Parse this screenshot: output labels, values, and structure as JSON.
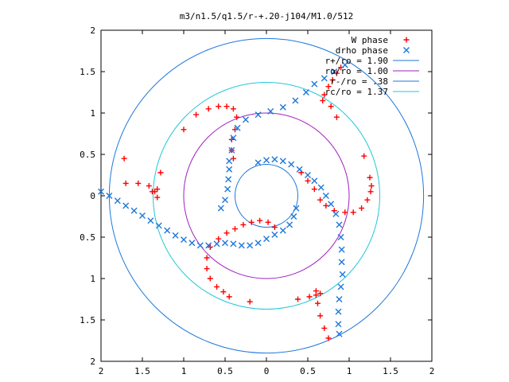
{
  "chart_data": {
    "type": "scatter",
    "title": "m3/n1.5/q1.5/r-+.20-j104/M1.0/512",
    "xlabel": "",
    "ylabel": "",
    "xlim": [
      -2,
      2
    ],
    "ylim": [
      -2,
      2
    ],
    "x_tick_values": [
      -2,
      -1.5,
      -1,
      -0.5,
      0,
      0.5,
      1,
      1.5,
      2
    ],
    "y_tick_values": [
      -2,
      -1.5,
      -1,
      -0.5,
      0,
      0.5,
      1,
      1.5,
      2
    ],
    "x_tick_labels": [
      "2",
      "1.5",
      "1",
      "0.5",
      "0",
      "0.5",
      "1",
      "1.5",
      "2"
    ],
    "y_tick_labels": [
      "2",
      "1.5",
      "1",
      "0.5",
      "0",
      "0.5",
      "1",
      "1.5",
      "2"
    ],
    "grid": false,
    "legend_position": "top-right",
    "series": [
      {
        "name": "W phase",
        "marker": "plus",
        "color": "#ff0000",
        "points": [
          [
            0.9,
            1.55
          ],
          [
            0.85,
            1.48
          ],
          [
            0.8,
            1.4
          ],
          [
            0.75,
            1.32
          ],
          [
            0.7,
            1.22
          ],
          [
            0.68,
            1.15
          ],
          [
            0.42,
            0.28
          ],
          [
            0.5,
            0.18
          ],
          [
            0.58,
            0.08
          ],
          [
            0.65,
            -0.05
          ],
          [
            0.72,
            -0.12
          ],
          [
            0.82,
            -0.18
          ],
          [
            0.95,
            -0.2
          ],
          [
            1.05,
            -0.2
          ],
          [
            1.15,
            -0.15
          ],
          [
            1.22,
            -0.05
          ],
          [
            1.26,
            0.05
          ],
          [
            1.27,
            0.12
          ],
          [
            0.1,
            -0.38
          ],
          [
            0.02,
            -0.32
          ],
          [
            -0.08,
            -0.3
          ],
          [
            -0.18,
            -0.32
          ],
          [
            -0.28,
            -0.35
          ],
          [
            -0.38,
            -0.4
          ],
          [
            -0.48,
            -0.45
          ],
          [
            -0.58,
            -0.52
          ],
          [
            -0.68,
            -0.62
          ],
          [
            -0.72,
            -0.75
          ],
          [
            -0.72,
            -0.88
          ],
          [
            -0.68,
            -1.0
          ],
          [
            -0.6,
            -1.1
          ],
          [
            -0.52,
            -1.16
          ],
          [
            -0.4,
            0.45
          ],
          [
            -0.42,
            0.55
          ],
          [
            -0.42,
            0.68
          ],
          [
            -0.38,
            0.8
          ],
          [
            -0.36,
            0.95
          ],
          [
            -0.4,
            1.05
          ],
          [
            -0.48,
            1.08
          ],
          [
            -0.58,
            1.08
          ],
          [
            -0.7,
            1.05
          ],
          [
            -1.72,
            0.45
          ],
          [
            -1.7,
            0.15
          ],
          [
            -1.55,
            0.15
          ],
          [
            -1.42,
            0.12
          ],
          [
            -1.35,
            0.05
          ],
          [
            -1.32,
            -0.02
          ],
          [
            -1.38,
            0.05
          ],
          [
            0.6,
            -1.15
          ],
          [
            0.62,
            -1.3
          ],
          [
            0.65,
            -1.45
          ],
          [
            0.7,
            -1.6
          ],
          [
            0.75,
            -1.72
          ],
          [
            0.38,
            -1.25
          ],
          [
            0.52,
            -1.22
          ],
          [
            0.6,
            -1.2
          ],
          [
            0.65,
            -1.18
          ],
          [
            -1.0,
            0.8
          ],
          [
            -0.85,
            0.98
          ],
          [
            0.85,
            0.95
          ],
          [
            1.18,
            0.48
          ],
          [
            1.25,
            0.22
          ],
          [
            -1.28,
            0.28
          ],
          [
            -1.32,
            0.08
          ],
          [
            -0.45,
            -1.22
          ],
          [
            -0.2,
            -1.28
          ],
          [
            0.78,
            1.08
          ]
        ]
      },
      {
        "name": "drho phase",
        "marker": "cross",
        "color": "#1e78dc",
        "points": [
          [
            -2.0,
            0.05
          ],
          [
            -1.9,
            0.0
          ],
          [
            -1.8,
            -0.06
          ],
          [
            -1.7,
            -0.12
          ],
          [
            -1.6,
            -0.18
          ],
          [
            -1.5,
            -0.24
          ],
          [
            -1.4,
            -0.3
          ],
          [
            -1.3,
            -0.36
          ],
          [
            -1.2,
            -0.42
          ],
          [
            -1.1,
            -0.48
          ],
          [
            -1.0,
            -0.53
          ],
          [
            -0.9,
            -0.57
          ],
          [
            -0.8,
            -0.6
          ],
          [
            -0.7,
            -0.6
          ],
          [
            -0.6,
            -0.58
          ],
          [
            -0.5,
            -0.57
          ],
          [
            -0.4,
            -0.58
          ],
          [
            -0.3,
            -0.6
          ],
          [
            -0.2,
            -0.6
          ],
          [
            -0.1,
            -0.57
          ],
          [
            0.0,
            -0.52
          ],
          [
            0.1,
            -0.47
          ],
          [
            0.2,
            -0.42
          ],
          [
            0.28,
            -0.35
          ],
          [
            0.33,
            -0.25
          ],
          [
            0.36,
            -0.15
          ],
          [
            -0.1,
            0.4
          ],
          [
            0.0,
            0.43
          ],
          [
            0.1,
            0.44
          ],
          [
            0.2,
            0.42
          ],
          [
            0.3,
            0.38
          ],
          [
            0.4,
            0.32
          ],
          [
            0.5,
            0.25
          ],
          [
            0.58,
            0.18
          ],
          [
            0.66,
            0.1
          ],
          [
            0.72,
            0.0
          ],
          [
            0.78,
            -0.1
          ],
          [
            0.84,
            -0.22
          ],
          [
            0.88,
            -0.35
          ],
          [
            0.9,
            -0.5
          ],
          [
            0.91,
            -0.65
          ],
          [
            0.91,
            -0.8
          ],
          [
            0.92,
            -0.95
          ],
          [
            0.9,
            -1.1
          ],
          [
            0.88,
            -1.25
          ],
          [
            0.87,
            -1.4
          ],
          [
            0.87,
            -1.55
          ],
          [
            0.88,
            -1.67
          ],
          [
            -0.55,
            -0.15
          ],
          [
            -0.5,
            -0.05
          ],
          [
            -0.47,
            0.08
          ],
          [
            -0.46,
            0.2
          ],
          [
            -0.45,
            0.32
          ],
          [
            -0.45,
            0.42
          ],
          [
            -0.42,
            0.55
          ],
          [
            -0.4,
            0.7
          ],
          [
            -0.35,
            0.82
          ],
          [
            -0.25,
            0.92
          ],
          [
            -0.1,
            0.98
          ],
          [
            0.05,
            1.02
          ],
          [
            0.2,
            1.07
          ],
          [
            0.35,
            1.15
          ],
          [
            0.48,
            1.25
          ],
          [
            0.58,
            1.35
          ],
          [
            0.7,
            1.42
          ],
          [
            0.82,
            1.5
          ],
          [
            0.95,
            1.58
          ]
        ]
      },
      {
        "name": "r+/ro = 1.90",
        "type": "circle",
        "radius": 1.9,
        "color": "#1e78dc"
      },
      {
        "name": "ro/ro = 1.00",
        "type": "circle",
        "radius": 1.0,
        "color": "#a020c0"
      },
      {
        "name": "r-/ro = .38",
        "type": "circle",
        "radius": 0.38,
        "color": "#1e78dc"
      },
      {
        "name": "rc/ro = 1.37",
        "type": "circle",
        "radius": 1.37,
        "color": "#20c8d8"
      }
    ]
  }
}
